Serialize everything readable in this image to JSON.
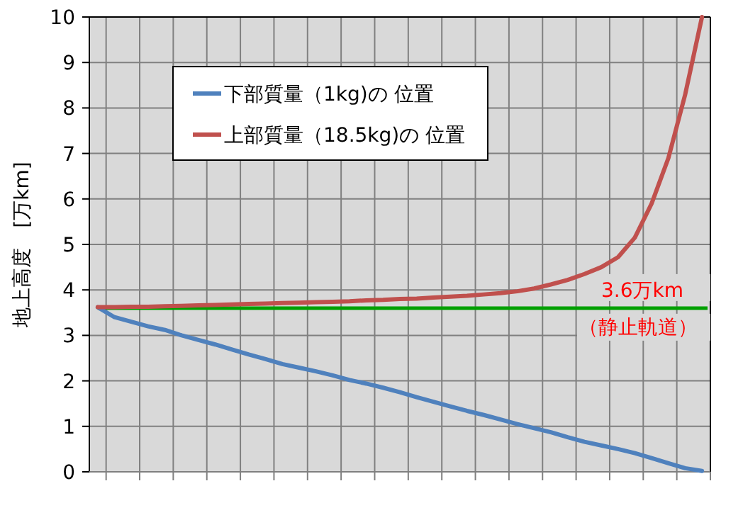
{
  "chart_data": {
    "type": "line",
    "ylabel": "地上高度　[万km]",
    "categories": [
      null,
      null,
      null,
      null,
      null,
      null,
      null,
      null,
      null,
      null,
      null,
      null,
      null,
      null,
      null,
      null,
      null,
      null,
      null,
      null,
      null,
      null,
      null,
      null,
      null,
      null,
      null,
      null,
      null,
      null,
      null,
      null,
      null,
      null,
      null,
      null,
      null
    ],
    "series": [
      {
        "name": "下部質量（1kg)の 位置",
        "color": "#4f81bd",
        "values": [
          3.62,
          3.4,
          3.3,
          3.2,
          3.12,
          3.0,
          2.9,
          2.8,
          2.69,
          2.58,
          2.48,
          2.37,
          2.29,
          2.21,
          2.12,
          2.02,
          1.94,
          1.85,
          1.75,
          1.64,
          1.54,
          1.44,
          1.34,
          1.25,
          1.15,
          1.05,
          0.96,
          0.87,
          0.76,
          0.66,
          0.58,
          0.5,
          0.41,
          0.3,
          0.19,
          0.08,
          0.02
        ]
      },
      {
        "name": "上部質量（18.5kg)の 位置",
        "color": "#c0504d",
        "values": [
          3.62,
          3.62,
          3.63,
          3.63,
          3.64,
          3.65,
          3.66,
          3.67,
          3.68,
          3.69,
          3.7,
          3.71,
          3.72,
          3.73,
          3.74,
          3.75,
          3.77,
          3.78,
          3.8,
          3.81,
          3.83,
          3.85,
          3.87,
          3.9,
          3.93,
          3.97,
          4.03,
          4.12,
          4.22,
          4.35,
          4.5,
          4.72,
          5.15,
          5.9,
          6.9,
          8.3,
          10
        ]
      }
    ],
    "ylim": [
      0,
      10
    ],
    "yticks": [
      0,
      1,
      2,
      3,
      4,
      5,
      6,
      7,
      8,
      9,
      10
    ],
    "grid": true,
    "legend": "top left",
    "marker": "none",
    "line_style": "solid",
    "ref_lines": [
      {
        "axis": "y",
        "value": 3.6,
        "label": "3.6万km",
        "color": "#00a000"
      }
    ],
    "annotations": [
      {
        "text": "（静止軌道）",
        "y": 3.6
      }
    ]
  }
}
